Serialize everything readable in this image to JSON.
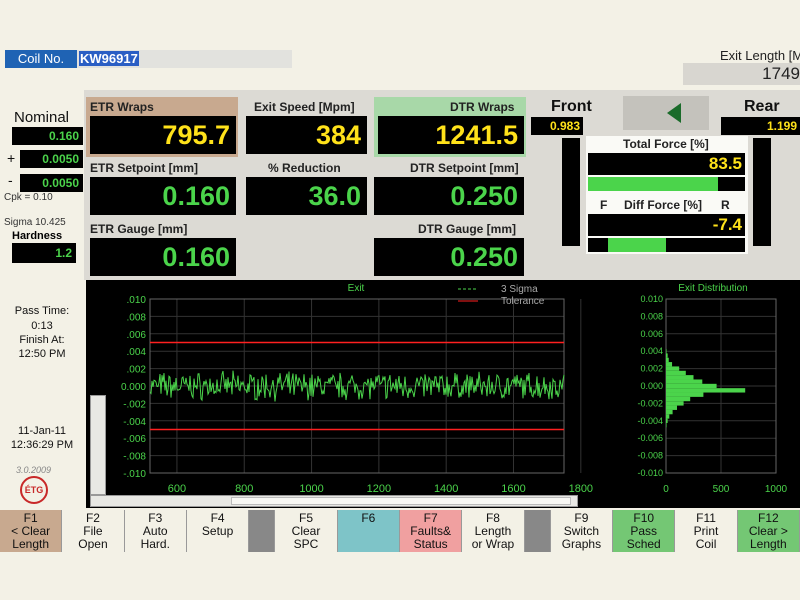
{
  "header": {
    "coil_label": "Coil No.",
    "coil_value": "KW96917",
    "exit_length_label": "Exit Length [M",
    "exit_length_value": "1749"
  },
  "left": {
    "nominal_label": "Nominal",
    "nominal_value": "0.160",
    "plus_sign": "+",
    "plus_value": "0.0050",
    "minus_sign": "-",
    "minus_value": "0.0050",
    "cpk": "Cpk = 0.10",
    "sigma": "Sigma 10.425",
    "hardness_label": "Hardness",
    "hardness_value": "1.2",
    "pass_time_label": "Pass Time:",
    "pass_time_value": "0:13",
    "finish_label": "Finish At:",
    "finish_value": "12:50 PM",
    "date": "11-Jan-11",
    "time": "12:36:29 PM",
    "version": "3.0.2009",
    "logo_text": "ÉTG"
  },
  "readouts": {
    "etr_wraps_label": "ETR Wraps",
    "etr_wraps_value": "795.7",
    "exit_speed_label": "Exit Speed [Mpm]",
    "exit_speed_value": "384",
    "dtr_wraps_label": "DTR Wraps",
    "dtr_wraps_value": "1241.5",
    "etr_setpoint_label": "ETR Setpoint [mm]",
    "etr_setpoint_value": "0.160",
    "reduction_label": "% Reduction",
    "reduction_value": "36.0",
    "dtr_setpoint_label": "DTR Setpoint [mm]",
    "dtr_setpoint_value": "0.250",
    "etr_gauge_label": "ETR Gauge [mm]",
    "etr_gauge_value": "0.160",
    "dtr_gauge_label": "DTR Gauge [mm]",
    "dtr_gauge_value": "0.250"
  },
  "force": {
    "front_label": "Front",
    "front_value": "0.983",
    "rear_label": "Rear",
    "rear_value": "1.199",
    "total_force_label": "Total Force [%]",
    "total_force_value": "83.5",
    "total_force_fill": 0.83,
    "f_label": "F",
    "diff_force_label": "Diff Force [%]",
    "r_label": "R",
    "diff_force_value": "-7.4",
    "diff_force_fill": 0.37,
    "front_bar_fill": 0.0,
    "rear_bar_fill": 0.0,
    "arrow_color": "#1a6b2a"
  },
  "chart_data": [
    {
      "type": "line",
      "title": "Exit",
      "x_ticks": [
        "600",
        "800",
        "1000",
        "1200",
        "1400",
        "1600",
        "1800"
      ],
      "y_ticks": [
        ".010",
        ".008",
        ".006",
        ".004",
        ".002",
        "0.000",
        "-.002",
        "-.004",
        "-.006",
        "-.008",
        "-.010"
      ],
      "xlim": [
        520,
        1750
      ],
      "ylim": [
        -0.01,
        0.01
      ],
      "grid": true,
      "legend": [
        {
          "name": "3 Sigma",
          "color": "#4bd44b",
          "style": "dashed"
        },
        {
          "name": "Tolerance",
          "color": "#ff2020",
          "style": "solid"
        }
      ],
      "tolerance": [
        0.005,
        -0.005
      ],
      "series_color": "#4bd44b",
      "noise_amplitude": 0.0012
    },
    {
      "type": "bar",
      "title": "Exit Distribution",
      "orientation": "horizontal",
      "x_ticks": [
        "0",
        "500",
        "1000"
      ],
      "xlim": [
        0,
        1000
      ],
      "y_ticks": [
        "0.010",
        "0.008",
        "0.006",
        "0.004",
        "0.002",
        "0.000",
        "-0.002",
        "-0.004",
        "-0.006",
        "-0.008",
        "-0.010"
      ],
      "ylim": [
        -0.01,
        0.01
      ],
      "bins": [
        0.004,
        0.0035,
        0.003,
        0.0025,
        0.002,
        0.0015,
        0.001,
        0.0005,
        0.0,
        -0.0005,
        -0.001,
        -0.0015,
        -0.002,
        -0.0025,
        -0.003,
        -0.0035,
        -0.004,
        -0.0045
      ],
      "counts": [
        5,
        15,
        25,
        55,
        120,
        180,
        250,
        330,
        460,
        720,
        340,
        220,
        160,
        100,
        60,
        30,
        15,
        5
      ]
    }
  ],
  "fkeys": [
    {
      "key": "F1",
      "line1": "< Clear",
      "line2": "Length",
      "color": "#c8a98f"
    },
    {
      "key": "F2",
      "line1": "File",
      "line2": "Open",
      "color": "#f3f1e6"
    },
    {
      "key": "F3",
      "line1": "Auto",
      "line2": "Hard.",
      "color": "#f3f1e6"
    },
    {
      "key": "F4",
      "line1": "Setup",
      "line2": "",
      "color": "#f3f1e6"
    },
    {
      "key": "",
      "line1": "",
      "line2": "",
      "color": "#888888"
    },
    {
      "key": "F5",
      "line1": "Clear",
      "line2": "SPC",
      "color": "#f3f1e6"
    },
    {
      "key": "F6",
      "line1": "",
      "line2": "",
      "color": "#7ec4c8"
    },
    {
      "key": "F7",
      "line1": "Faults&",
      "line2": "Status",
      "color": "#f0a0a0"
    },
    {
      "key": "F8",
      "line1": "Length",
      "line2": "or Wrap",
      "color": "#f3f1e6"
    },
    {
      "key": "",
      "line1": "",
      "line2": "",
      "color": "#888888"
    },
    {
      "key": "F9",
      "line1": "Switch",
      "line2": "Graphs",
      "color": "#f3f1e6"
    },
    {
      "key": "F10",
      "line1": "Pass",
      "line2": "Sched",
      "color": "#74c774"
    },
    {
      "key": "F11",
      "line1": "Print",
      "line2": "Coil",
      "color": "#f3f1e6"
    },
    {
      "key": "F12",
      "line1": "Clear >",
      "line2": "Length",
      "color": "#74c774"
    }
  ]
}
